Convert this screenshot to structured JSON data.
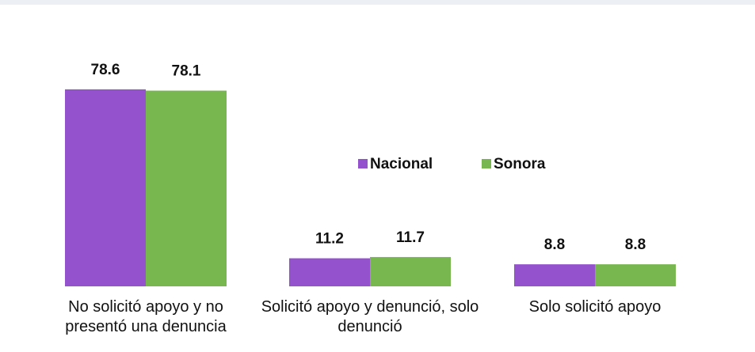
{
  "chart_data": {
    "type": "bar",
    "categories": [
      "No solicitó apoyo y no presentó una denuncia",
      "Solicitó apoyo y denunció, solo denunció",
      "Solo solicitó apoyo"
    ],
    "series": [
      {
        "name": "Nacional",
        "color": "#9452cc",
        "values": [
          78.6,
          11.2,
          8.8
        ]
      },
      {
        "name": "Sonora",
        "color": "#78b64f",
        "values": [
          78.1,
          11.7,
          8.8
        ]
      }
    ],
    "legend": "center"
  }
}
